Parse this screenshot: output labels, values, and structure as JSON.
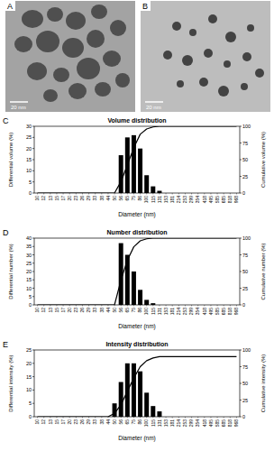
{
  "images": [
    {
      "label": "A",
      "scale_bar": "20 nm"
    },
    {
      "label": "B",
      "scale_bar": "20 nm"
    }
  ],
  "chart_data": [
    {
      "type": "bar",
      "annotations": [
        "C"
      ],
      "title": "Volume distribution",
      "x_label": "Diameter (nm)",
      "y_label": "Differential volume (%)",
      "y2_label": "Cumulative volume (%)",
      "categories": [
        "10",
        "12",
        "13",
        "15",
        "17",
        "20",
        "23",
        "26",
        "29",
        "33",
        "38",
        "44",
        "50",
        "56",
        "65",
        "75",
        "86",
        "100",
        "115",
        "131",
        "153",
        "181",
        "214",
        "253",
        "299",
        "354",
        "418",
        "495",
        "585",
        "685",
        "818",
        "968"
      ],
      "series": [
        {
          "type": "bar",
          "color": "#000000",
          "values": [
            0,
            0,
            0,
            0,
            0,
            0,
            0,
            0,
            0,
            0,
            0,
            0,
            0,
            17,
            25,
            26,
            20,
            8,
            3,
            1,
            0,
            0,
            0,
            0,
            0,
            0,
            0,
            0,
            0,
            0,
            0,
            0
          ]
        },
        {
          "type": "line",
          "color": "#000000",
          "axis": "y2",
          "values": [
            0,
            0,
            0,
            0,
            0,
            0,
            0,
            0,
            0,
            0,
            0,
            0,
            0,
            17,
            42,
            68,
            88,
            96,
            99,
            100,
            100,
            100,
            100,
            100,
            100,
            100,
            100,
            100,
            100,
            100,
            100,
            100
          ]
        }
      ],
      "ylim": [
        0,
        30
      ],
      "yticks": [
        0,
        5,
        10,
        15,
        20,
        25,
        30
      ],
      "y2lim": [
        0,
        100
      ],
      "y2ticks": [
        0,
        25,
        50,
        75,
        100
      ]
    },
    {
      "type": "bar",
      "annotations": [
        "D"
      ],
      "title": "Number distribution",
      "x_label": "Diameter (nm)",
      "y_label": "Differential number (%)",
      "y2_label": "Cumulative number (%)",
      "categories": [
        "10",
        "12",
        "13",
        "15",
        "17",
        "20",
        "23",
        "26",
        "29",
        "33",
        "38",
        "44",
        "50",
        "56",
        "65",
        "75",
        "86",
        "100",
        "115",
        "131",
        "153",
        "181",
        "214",
        "253",
        "299",
        "354",
        "418",
        "495",
        "585",
        "685",
        "818",
        "968"
      ],
      "series": [
        {
          "type": "bar",
          "color": "#000000",
          "values": [
            0,
            0,
            0,
            0,
            0,
            0,
            0,
            0,
            0,
            0,
            0,
            0,
            0,
            37,
            30,
            20,
            9,
            3,
            1,
            0,
            0,
            0,
            0,
            0,
            0,
            0,
            0,
            0,
            0,
            0,
            0,
            0
          ]
        },
        {
          "type": "line",
          "color": "#000000",
          "axis": "y2",
          "values": [
            0,
            0,
            0,
            0,
            0,
            0,
            0,
            0,
            0,
            0,
            0,
            0,
            0,
            37,
            67,
            87,
            96,
            99,
            100,
            100,
            100,
            100,
            100,
            100,
            100,
            100,
            100,
            100,
            100,
            100,
            100,
            100
          ]
        }
      ],
      "ylim": [
        0,
        40
      ],
      "yticks": [
        0,
        5,
        10,
        15,
        20,
        25,
        30,
        35,
        40
      ],
      "y2lim": [
        0,
        100
      ],
      "y2ticks": [
        0,
        25,
        50,
        75,
        100
      ]
    },
    {
      "type": "bar",
      "annotations": [
        "E"
      ],
      "title": "Intensity distribution",
      "x_label": "Diameter (nm)",
      "y_label": "Differential intensity (%)",
      "y2_label": "Cumulative intensity (%)",
      "categories": [
        "10",
        "12",
        "13",
        "15",
        "17",
        "20",
        "23",
        "26",
        "29",
        "33",
        "38",
        "44",
        "50",
        "56",
        "65",
        "75",
        "86",
        "100",
        "115",
        "131",
        "153",
        "181",
        "214",
        "253",
        "299",
        "354",
        "418",
        "495",
        "585",
        "685",
        "818",
        "968"
      ],
      "series": [
        {
          "type": "bar",
          "color": "#000000",
          "values": [
            0,
            0,
            0,
            0,
            0,
            0,
            0,
            0,
            0,
            0,
            0,
            0,
            5,
            13,
            20,
            20,
            17,
            9,
            4,
            2,
            0,
            0,
            0,
            0,
            0,
            0,
            0,
            0,
            0,
            0,
            0,
            0
          ]
        },
        {
          "type": "line",
          "color": "#000000",
          "axis": "y2",
          "values": [
            0,
            0,
            0,
            0,
            0,
            0,
            0,
            0,
            0,
            0,
            0,
            0,
            5,
            18,
            38,
            58,
            75,
            84,
            88,
            90,
            90,
            90,
            90,
            90,
            90,
            90,
            90,
            90,
            90,
            90,
            90,
            90
          ]
        }
      ],
      "ylim": [
        0,
        25
      ],
      "yticks": [
        0,
        5,
        10,
        15,
        20,
        25
      ],
      "y2lim": [
        0,
        100
      ],
      "y2ticks": [
        0,
        25,
        50,
        75,
        100
      ]
    }
  ]
}
